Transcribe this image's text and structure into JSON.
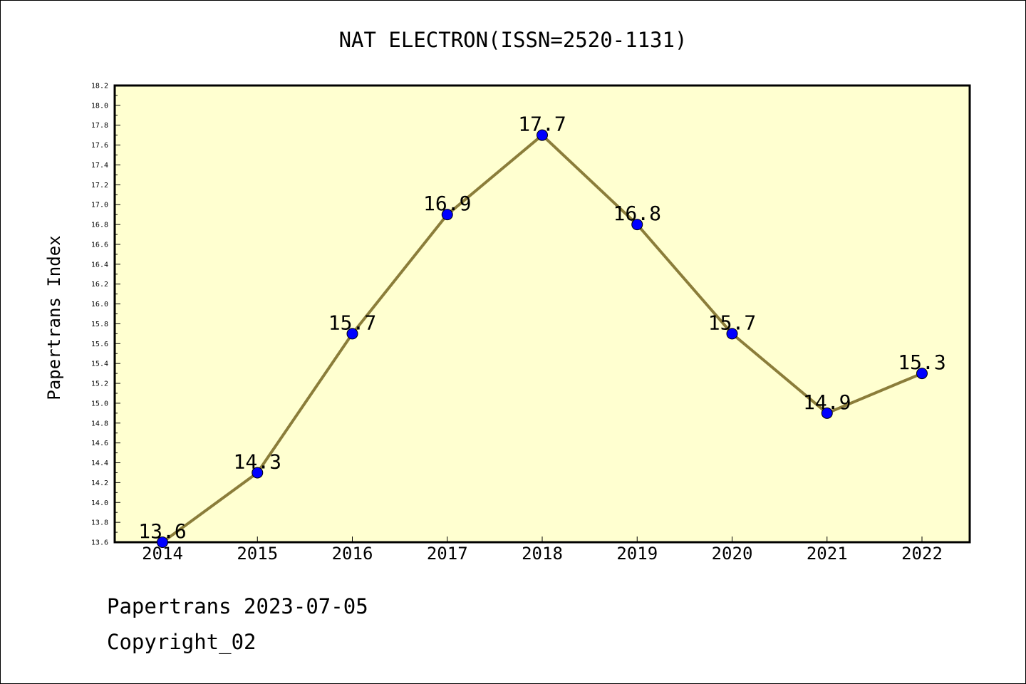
{
  "chart_data": {
    "type": "line",
    "title": "NAT ELECTRON(ISSN=2520-1131)",
    "xlabel": "",
    "ylabel": "Papertrans Index",
    "categories": [
      "2014",
      "2015",
      "2016",
      "2017",
      "2018",
      "2019",
      "2020",
      "2021",
      "2022"
    ],
    "series": [
      {
        "values": [
          13.6,
          14.3,
          15.7,
          16.9,
          17.7,
          16.8,
          15.7,
          14.9,
          15.3
        ],
        "data_labels": [
          "13.6",
          "14.3",
          "15.7",
          "16.9",
          "17.7",
          "16.8",
          "15.7",
          "14.9",
          "15.3"
        ]
      }
    ],
    "ylim": [
      13.6,
      18.2
    ],
    "yticks": [
      "13.6",
      "13.8",
      "14.0",
      "14.2",
      "14.4",
      "14.6",
      "14.8",
      "15.0",
      "15.2",
      "15.4",
      "15.6",
      "15.8",
      "16.0",
      "16.2",
      "16.4",
      "16.6",
      "16.8",
      "17.0",
      "17.2",
      "17.4",
      "17.6",
      "17.8",
      "18.0",
      "18.2"
    ],
    "grid": false,
    "legend": "none",
    "colors": {
      "plot_background": "#ffffd0",
      "line": "#8b7d3a",
      "marker": "#0000ff",
      "axes": "#000000"
    }
  },
  "footer": {
    "line1": "Papertrans 2023-07-05",
    "line2": "Copyright_02"
  }
}
